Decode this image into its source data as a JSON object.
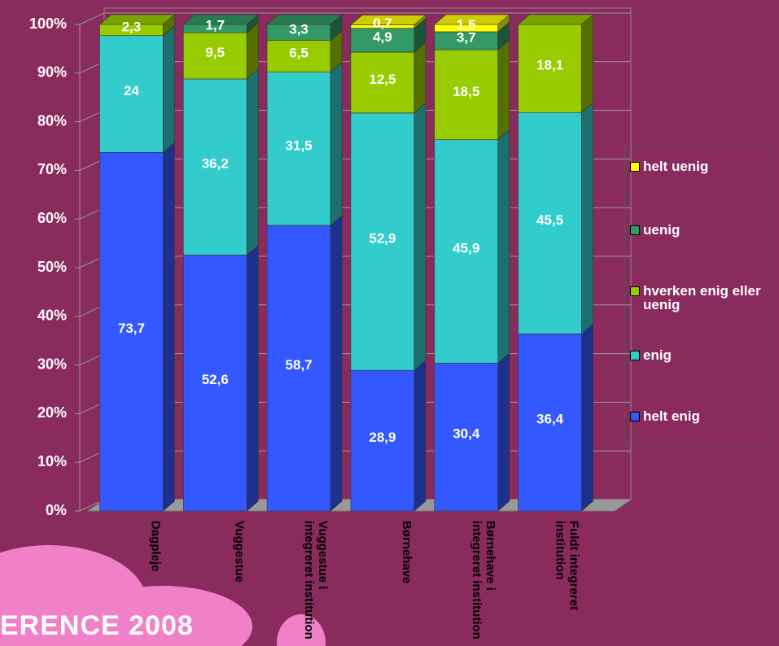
{
  "chart_data": {
    "type": "bar",
    "stacked": true,
    "categories": [
      "Dagpleje",
      "Vuggestue",
      "Vuggestue i integreret institution",
      "Børnehave",
      "Børnehave i integreret institution",
      "Fuldt integreret institution"
    ],
    "series": [
      {
        "name": "helt enig",
        "color": "#3358ff",
        "values": [
          73.7,
          52.6,
          58.7,
          28.9,
          30.4,
          36.4
        ],
        "value_labels": [
          "73,7",
          "52,6",
          "58,7",
          "28,9",
          "30,4",
          "36,4"
        ]
      },
      {
        "name": "enig",
        "color": "#33cccc",
        "values": [
          24,
          36.2,
          31.5,
          52.9,
          45.9,
          45.5
        ],
        "value_labels": [
          "24",
          "36,2",
          "31,5",
          "52,9",
          "45,9",
          "45,5"
        ]
      },
      {
        "name": "hverken enig eller uenig",
        "color": "#99cc00",
        "values": [
          2.3,
          9.5,
          6.5,
          12.5,
          18.5,
          18.1
        ],
        "value_labels": [
          "2,3",
          "9,5",
          "6,5",
          "12,5",
          "18,5",
          "18,1"
        ]
      },
      {
        "name": "uenig",
        "color": "#339966",
        "values": [
          null,
          1.7,
          3.3,
          4.9,
          3.7,
          null
        ],
        "value_labels": [
          null,
          "1,7",
          "3,3",
          "4,9",
          "3,7",
          null
        ]
      },
      {
        "name": "helt uenig",
        "color": "#ffff00",
        "values": [
          null,
          null,
          null,
          0.7,
          1.5,
          null
        ],
        "value_labels": [
          null,
          null,
          null,
          "0,7",
          "1,5",
          null
        ]
      }
    ],
    "ylim": [
      0,
      100
    ],
    "yticks": [
      {
        "value": 0,
        "label": "0%"
      },
      {
        "value": 10,
        "label": "10%"
      },
      {
        "value": 20,
        "label": "20%"
      },
      {
        "value": 30,
        "label": "30%"
      },
      {
        "value": 40,
        "label": "40%"
      },
      {
        "value": 50,
        "label": "50%"
      },
      {
        "value": 60,
        "label": "60%"
      },
      {
        "value": 70,
        "label": "70%"
      },
      {
        "value": 80,
        "label": "80%"
      },
      {
        "value": 90,
        "label": "90%"
      },
      {
        "value": 100,
        "label": "100%"
      }
    ],
    "grid": true
  },
  "slide": {
    "footer": "ERENCE 2008"
  }
}
